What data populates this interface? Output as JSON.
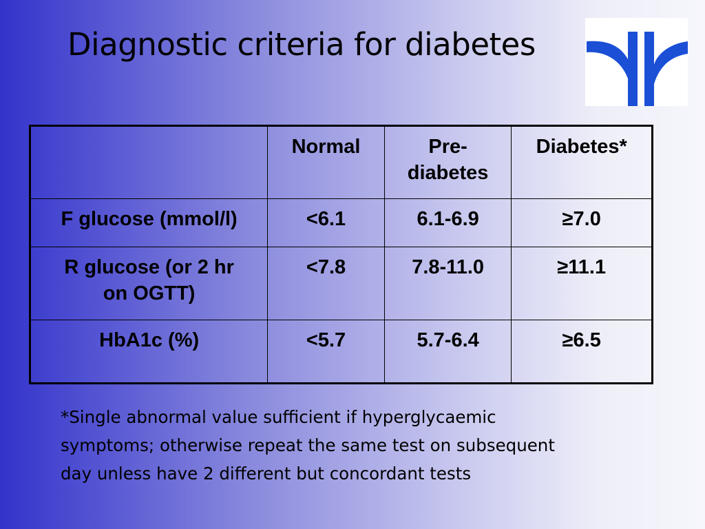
{
  "slide": {
    "title": "Diagnostic criteria for diabetes",
    "colors": {
      "logo": "#1a4fd6",
      "background_left": "#3333cc",
      "background_right": "#f6f6fc"
    }
  },
  "table": {
    "headers": [
      "",
      "Normal",
      "Pre-diabetes",
      "Diabetes*"
    ],
    "header_lines": {
      "pre_1": "Pre-",
      "pre_2": "diabetes"
    },
    "rows": [
      {
        "label": "F glucose (mmol/l)",
        "normal": "<6.1",
        "pre": "6.1-6.9",
        "diabetes": "≥7.0"
      },
      {
        "label_1": "R glucose (or 2 hr",
        "label_2": "on OGTT)",
        "normal": "<7.8",
        "pre": "7.8-11.0",
        "diabetes": "≥11.1"
      },
      {
        "label": "HbA1c (%)",
        "normal": "<5.7",
        "pre": "5.7-6.4",
        "diabetes": "≥6.5"
      }
    ]
  },
  "footnote": {
    "line_1": "*Single abnormal value sufficient if hyperglycaemic",
    "line_2": "symptoms; otherwise repeat the same test on subsequent",
    "line_3": "day unless have 2 different but concordant tests"
  }
}
